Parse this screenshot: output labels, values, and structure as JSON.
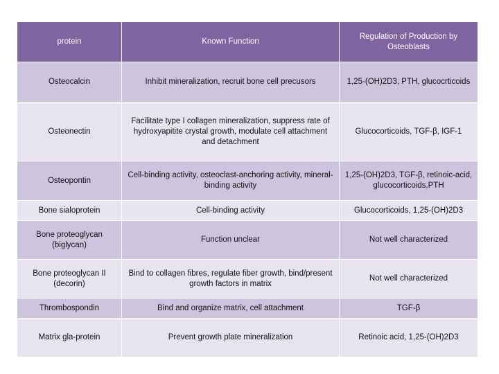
{
  "table": {
    "headers": [
      "protein",
      "Known Function",
      "Regulation of Production by Osteoblasts"
    ],
    "rows": [
      {
        "protein": "Osteocalcin",
        "function": "Inhibit mineralization, recruit bone cell precusors",
        "regulation": "1,25-(OH)2D3, PTH, glucocrticoids"
      },
      {
        "protein": "Osteonectin",
        "function": "Facilitate type I collagen mineralization, suppress rate of hydroxyapitite crystal growth, modulate cell attachment and detachment",
        "regulation": "Glucocorticoids, TGF-β, IGF-1"
      },
      {
        "protein": "Osteopontin",
        "function": "Cell-binding activity, osteoclast-anchoring activity, mineral-binding activity",
        "regulation": "1,25-(OH)2D3, TGF-β, retinoic-acid, glucocorticoids,PTH"
      },
      {
        "protein": "Bone sialoprotein",
        "function": "Cell-binding activity",
        "regulation": "Glucocorticoids, 1,25-(OH)2D3"
      },
      {
        "protein": "Bone proteoglycan (biglycan)",
        "function": "Function unclear",
        "regulation": "Not well characterized"
      },
      {
        "protein": "Bone proteoglycan II (decorin)",
        "function": "Bind to collagen fibres, regulate fiber growth, bind/present growth factors in matrix",
        "regulation": "Not well characterized"
      },
      {
        "protein": "Thrombospondin",
        "function": "Bind and organize matrix, cell attachment",
        "regulation": "TGF-β"
      },
      {
        "protein": "Matrix gla-protein",
        "function": "Prevent growth plate mineralization",
        "regulation": "Retinoic acid, 1,25-(OH)2D3"
      }
    ]
  }
}
